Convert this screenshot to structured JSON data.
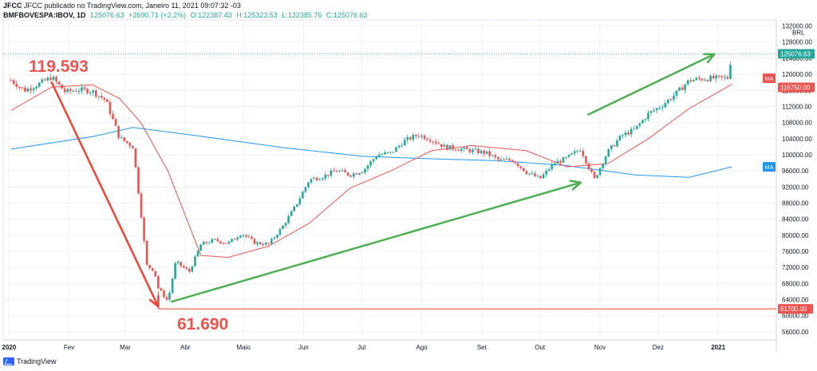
{
  "header": {
    "publisher_line": "JFCC publicado no TradingView.com, Janeiro 11, 2021 09:07:32 -03",
    "symbol": "BMFBOVESPA:IBOV, 1D",
    "last": "125076.63",
    "change": "+2690.71 (+2.2%)",
    "open": "O:122387.43",
    "high": "H:125323.53",
    "low": "L:122385.76",
    "close": "C:125076.63"
  },
  "footer": {
    "brand": "TradingView"
  },
  "chart_data": {
    "type": "candlestick",
    "currency": "BRL",
    "x_labels": [
      "2020",
      "Fev",
      "Mar",
      "Abr",
      "Maio",
      "Jun",
      "Jul",
      "Ago",
      "Set",
      "Out",
      "Nov",
      "Dez",
      "2021"
    ],
    "y_ticks": [
      56000,
      60000,
      64000,
      68000,
      72000,
      76000,
      80000,
      84000,
      88000,
      92000,
      96000,
      100000,
      104000,
      108000,
      112000,
      116000,
      120000,
      124000,
      128000,
      132000
    ],
    "y_tick_labels": [
      "56000.00",
      "60000.00",
      "64000.00",
      "68000.00",
      "72000.00",
      "76000.00",
      "80000.00",
      "84000.00",
      "88000.00",
      "92000.00",
      "96000.00",
      "100000.00",
      "104000.00",
      "108000.00",
      "112000.00",
      "116000.00",
      "120000.00",
      "124000.00",
      "128000.00",
      "132000.00"
    ],
    "ylim": [
      54000,
      133500
    ],
    "close_series": [
      {
        "d": "2020-01-02",
        "v": 118500
      },
      {
        "d": "2020-01-09",
        "v": 116000
      },
      {
        "d": "2020-01-16",
        "v": 117500
      },
      {
        "d": "2020-01-23",
        "v": 119300
      },
      {
        "d": "2020-01-30",
        "v": 115600
      },
      {
        "d": "2020-02-06",
        "v": 116200
      },
      {
        "d": "2020-02-13",
        "v": 115800
      },
      {
        "d": "2020-02-20",
        "v": 113500
      },
      {
        "d": "2020-02-27",
        "v": 104200
      },
      {
        "d": "2020-03-05",
        "v": 102000
      },
      {
        "d": "2020-03-09",
        "v": 86000
      },
      {
        "d": "2020-03-12",
        "v": 72500
      },
      {
        "d": "2020-03-16",
        "v": 71200
      },
      {
        "d": "2020-03-18",
        "v": 66900
      },
      {
        "d": "2020-03-23",
        "v": 63600
      },
      {
        "d": "2020-03-27",
        "v": 73400
      },
      {
        "d": "2020-04-03",
        "v": 70900
      },
      {
        "d": "2020-04-09",
        "v": 77700
      },
      {
        "d": "2020-04-16",
        "v": 78800
      },
      {
        "d": "2020-04-23",
        "v": 78000
      },
      {
        "d": "2020-04-30",
        "v": 80500
      },
      {
        "d": "2020-05-07",
        "v": 78100
      },
      {
        "d": "2020-05-14",
        "v": 77800
      },
      {
        "d": "2020-05-21",
        "v": 82000
      },
      {
        "d": "2020-05-28",
        "v": 87400
      },
      {
        "d": "2020-06-04",
        "v": 93800
      },
      {
        "d": "2020-06-11",
        "v": 94600
      },
      {
        "d": "2020-06-18",
        "v": 96100
      },
      {
        "d": "2020-06-25",
        "v": 95000
      },
      {
        "d": "2020-07-02",
        "v": 96200
      },
      {
        "d": "2020-07-09",
        "v": 100000
      },
      {
        "d": "2020-07-16",
        "v": 100400
      },
      {
        "d": "2020-07-23",
        "v": 103400
      },
      {
        "d": "2020-07-30",
        "v": 105000
      },
      {
        "d": "2020-08-06",
        "v": 103800
      },
      {
        "d": "2020-08-13",
        "v": 101900
      },
      {
        "d": "2020-08-20",
        "v": 101500
      },
      {
        "d": "2020-08-27",
        "v": 101000
      },
      {
        "d": "2020-09-03",
        "v": 100500
      },
      {
        "d": "2020-09-10",
        "v": 98600
      },
      {
        "d": "2020-09-17",
        "v": 98700
      },
      {
        "d": "2020-09-24",
        "v": 95700
      },
      {
        "d": "2020-10-01",
        "v": 94000
      },
      {
        "d": "2020-10-08",
        "v": 97800
      },
      {
        "d": "2020-10-15",
        "v": 99200
      },
      {
        "d": "2020-10-22",
        "v": 101500
      },
      {
        "d": "2020-10-29",
        "v": 93800
      },
      {
        "d": "2020-11-05",
        "v": 100700
      },
      {
        "d": "2020-11-12",
        "v": 104700
      },
      {
        "d": "2020-11-19",
        "v": 106300
      },
      {
        "d": "2020-11-26",
        "v": 110200
      },
      {
        "d": "2020-12-03",
        "v": 112300
      },
      {
        "d": "2020-12-10",
        "v": 115100
      },
      {
        "d": "2020-12-17",
        "v": 118500
      },
      {
        "d": "2020-12-24",
        "v": 118900
      },
      {
        "d": "2020-12-30",
        "v": 119000
      },
      {
        "d": "2021-01-06",
        "v": 119100
      },
      {
        "d": "2021-01-08",
        "v": 125076
      }
    ],
    "ma_short": [
      {
        "d": "2020-01-02",
        "v": 111000
      },
      {
        "d": "2020-01-23",
        "v": 116800
      },
      {
        "d": "2020-02-13",
        "v": 117400
      },
      {
        "d": "2020-02-27",
        "v": 114000
      },
      {
        "d": "2020-03-09",
        "v": 108000
      },
      {
        "d": "2020-03-23",
        "v": 96000
      },
      {
        "d": "2020-04-09",
        "v": 75000
      },
      {
        "d": "2020-04-23",
        "v": 74500
      },
      {
        "d": "2020-05-14",
        "v": 77300
      },
      {
        "d": "2020-06-04",
        "v": 83000
      },
      {
        "d": "2020-06-25",
        "v": 91700
      },
      {
        "d": "2020-07-16",
        "v": 96000
      },
      {
        "d": "2020-08-06",
        "v": 101000
      },
      {
        "d": "2020-08-27",
        "v": 102300
      },
      {
        "d": "2020-09-24",
        "v": 101000
      },
      {
        "d": "2020-10-15",
        "v": 97000
      },
      {
        "d": "2020-11-05",
        "v": 97800
      },
      {
        "d": "2020-11-26",
        "v": 104000
      },
      {
        "d": "2020-12-17",
        "v": 111500
      },
      {
        "d": "2021-01-08",
        "v": 117500
      }
    ],
    "ma_long": [
      {
        "d": "2020-01-02",
        "v": 101400
      },
      {
        "d": "2020-02-13",
        "v": 104500
      },
      {
        "d": "2020-03-05",
        "v": 106800
      },
      {
        "d": "2020-04-09",
        "v": 104600
      },
      {
        "d": "2020-05-21",
        "v": 101800
      },
      {
        "d": "2020-07-02",
        "v": 99600
      },
      {
        "d": "2020-08-06",
        "v": 99000
      },
      {
        "d": "2020-09-10",
        "v": 98500
      },
      {
        "d": "2020-10-15",
        "v": 97300
      },
      {
        "d": "2020-11-19",
        "v": 95000
      },
      {
        "d": "2020-12-17",
        "v": 94400
      },
      {
        "d": "2021-01-08",
        "v": 97000
      }
    ],
    "price_labels": {
      "last": {
        "text": "125076.63",
        "v": 125076.63,
        "color": "#26a69a"
      },
      "ma_short": {
        "text": "116750.00",
        "v": 116750,
        "color": "#ef5350"
      },
      "ma_tag_short": {
        "text": "MA",
        "v": 119000,
        "color": "#ef5350"
      },
      "ma_tag_long": {
        "text": "MA",
        "v": 97000,
        "color": "#2196f3"
      },
      "support": {
        "text": "61700.00",
        "v": 61700,
        "color": "#ef5350"
      },
      "unit": {
        "text": "BRL"
      }
    },
    "annotations": [
      {
        "text": "119.593",
        "color": "#ef5350"
      },
      {
        "text": "61.690",
        "color": "#ef5350"
      }
    ],
    "drawings": {
      "red_arrow": {
        "from": {
          "d": "2020-01-23",
          "v": 118000
        },
        "to": {
          "d": "2020-03-18",
          "v": 62300
        },
        "color": "#f44336"
      },
      "green_arrow_1": {
        "from": {
          "d": "2020-03-25",
          "v": 63500
        },
        "to": {
          "d": "2020-10-22",
          "v": 93100
        },
        "color": "#4caf50"
      },
      "green_arrow_2": {
        "from": {
          "d": "2020-10-26",
          "v": 110000
        },
        "to": {
          "d": "2020-12-30",
          "v": 125000
        },
        "color": "#4caf50"
      },
      "support_line": {
        "from": {
          "d": "2020-03-18",
          "v": 61700
        },
        "to": {
          "d": "2021-01-31",
          "v": 61700
        },
        "color": "#f44336"
      }
    },
    "colors": {
      "up": "#26a69a",
      "down": "#ef5350",
      "ma_short": "#ef5350",
      "ma_long": "#2196f3",
      "arrow_green": "#4caf50",
      "arrow_red": "#f44336",
      "grid": "#eef0f3"
    }
  }
}
